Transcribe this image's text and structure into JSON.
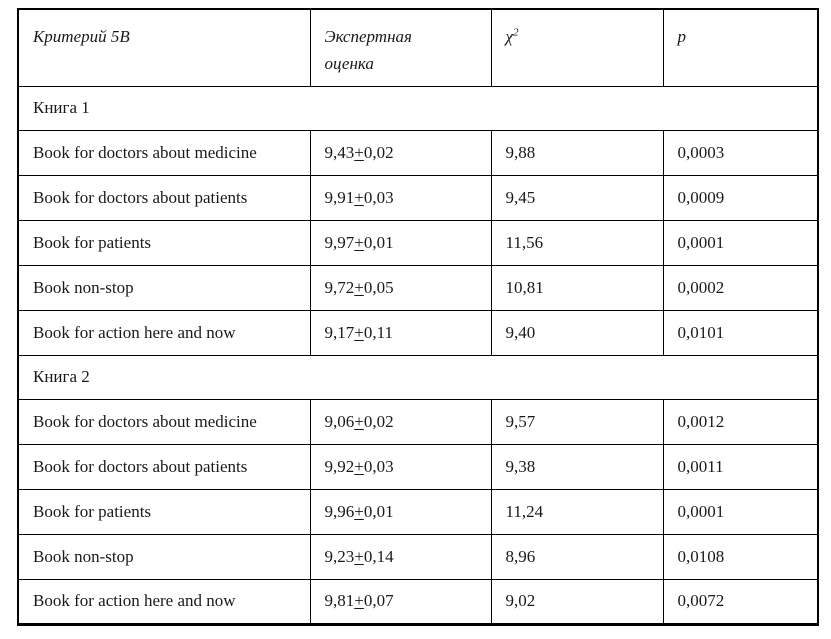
{
  "table": {
    "pm_symbol": "+",
    "header": {
      "criterion": "Критерий 5В",
      "expert_line1": "Экспертная",
      "expert_line2": "оценка",
      "chi_base": "χ",
      "chi_sup": "2",
      "p": "p"
    },
    "sections": [
      {
        "title": "Книга 1",
        "rows": [
          {
            "label": "Book for doctors about medicine",
            "score_mean": "9,43",
            "score_err": "0,02",
            "chi2": "9,88",
            "p": "0,0003"
          },
          {
            "label": "Book for doctors about patients",
            "score_mean": "9,91",
            "score_err": "0,03",
            "chi2": "9,45",
            "p": "0,0009"
          },
          {
            "label": "Book for patients",
            "score_mean": "9,97",
            "score_err": "0,01",
            "chi2": "11,56",
            "p": "0,0001"
          },
          {
            "label": "Book non-stop",
            "score_mean": "9,72",
            "score_err": "0,05",
            "chi2": "10,81",
            "p": "0,0002"
          },
          {
            "label": "Book for action here and now",
            "score_mean": "9,17",
            "score_err": "0,11",
            "chi2": "9,40",
            "p": "0,0101"
          }
        ]
      },
      {
        "title": "Книга 2",
        "rows": [
          {
            "label": "Book for doctors about medicine",
            "score_mean": "9,06",
            "score_err": "0,02",
            "chi2": "9,57",
            "p": "0,0012"
          },
          {
            "label": "Book for doctors about patients",
            "score_mean": "9,92",
            "score_err": "0,03",
            "chi2": "9,38",
            "p": "0,0011"
          },
          {
            "label": "Book for patients",
            "score_mean": "9,96",
            "score_err": "0,01",
            "chi2": "11,24",
            "p": "0,0001"
          },
          {
            "label": "Book non-stop",
            "score_mean": "9,23",
            "score_err": "0,14",
            "chi2": "8,96",
            "p": "0,0108"
          },
          {
            "label": "Book for action here and now",
            "score_mean": "9,81",
            "score_err": "0,07",
            "chi2": "9,02",
            "p": "0,0072"
          }
        ]
      }
    ]
  }
}
